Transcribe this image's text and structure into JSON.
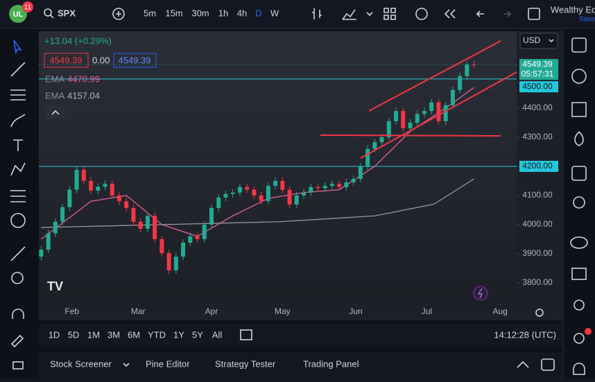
{
  "toolbar": {
    "logo_badge": "11",
    "symbol": "SPX",
    "intervals": [
      "5m",
      "15m",
      "30m",
      "1h",
      "4h",
      "D",
      "W"
    ],
    "account": "Wealthy Ed",
    "save": "Save"
  },
  "legend": {
    "change": "+13.04 (+0.29%)",
    "spread": "0.00"
  },
  "currency": "USD",
  "countdown": "05:57:31",
  "chart_data": {
    "type": "candlestick",
    "x": [
      19,
      22,
      25,
      28,
      31,
      34,
      37,
      40,
      43,
      46,
      49,
      52,
      55,
      58,
      61,
      64,
      67,
      70,
      73,
      76,
      79,
      82,
      85,
      88,
      91,
      94,
      97,
      100,
      103,
      106,
      109,
      112,
      115,
      118,
      121,
      124,
      127,
      130,
      133,
      136,
      139,
      142,
      145,
      148,
      151,
      154,
      157,
      160,
      163,
      166,
      169,
      172,
      175,
      178,
      181,
      184,
      187,
      190,
      193,
      196,
      199,
      202
    ],
    "open": [
      3890,
      3914,
      3970,
      4010,
      4060,
      4120,
      4188,
      4150,
      4117,
      4130,
      4140,
      4100,
      4080,
      4057,
      4010,
      3986,
      4030,
      3950,
      3902,
      3843,
      3890,
      3938,
      3960,
      3950,
      4000,
      4057,
      4093,
      4105,
      4110,
      4129,
      4120,
      4100,
      4081,
      4133,
      4150,
      4120,
      4069,
      4100,
      4110,
      4129,
      4125,
      4133,
      4140,
      4129,
      4145,
      4157,
      4200,
      4260,
      4283,
      4300,
      4355,
      4390,
      4331,
      4350,
      4380,
      4390,
      4420,
      4355,
      4410,
      4462,
      4510,
      4550
    ],
    "high": [
      3926,
      3982,
      4022,
      4072,
      4132,
      4200,
      4200,
      4162,
      4142,
      4152,
      4152,
      4112,
      4092,
      4069,
      4022,
      4042,
      4042,
      3962,
      3914,
      3902,
      3950,
      3972,
      3972,
      4012,
      4069,
      4105,
      4117,
      4122,
      4141,
      4141,
      4132,
      4112,
      4145,
      4162,
      4162,
      4132,
      4112,
      4122,
      4141,
      4141,
      4145,
      4152,
      4152,
      4157,
      4169,
      4212,
      4272,
      4295,
      4312,
      4367,
      4402,
      4402,
      4362,
      4392,
      4402,
      4432,
      4432,
      4422,
      4474,
      4522,
      4562,
      4562
    ],
    "low": [
      3878,
      3902,
      3958,
      3998,
      4048,
      4108,
      4138,
      4105,
      4105,
      4118,
      4088,
      4068,
      4045,
      3998,
      3974,
      3974,
      3938,
      3890,
      3831,
      3831,
      3878,
      3926,
      3938,
      3938,
      3988,
      4045,
      4081,
      4093,
      4098,
      4108,
      4088,
      4069,
      4069,
      4121,
      4108,
      4057,
      4057,
      4088,
      4098,
      4113,
      4113,
      4121,
      4117,
      4117,
      4133,
      4145,
      4188,
      4248,
      4271,
      4288,
      4343,
      4319,
      4319,
      4338,
      4368,
      4378,
      4343,
      4343,
      4398,
      4450,
      4498,
      4537
    ],
    "close": [
      3914,
      3970,
      4010,
      4060,
      4120,
      4188,
      4150,
      4117,
      4130,
      4140,
      4100,
      4080,
      4057,
      4010,
      3986,
      4030,
      3950,
      3902,
      3843,
      3890,
      3938,
      3960,
      3950,
      4000,
      4057,
      4093,
      4105,
      4110,
      4129,
      4120,
      4100,
      4081,
      4133,
      4150,
      4120,
      4069,
      4100,
      4110,
      4129,
      4125,
      4133,
      4140,
      4129,
      4145,
      4157,
      4200,
      4260,
      4283,
      4300,
      4355,
      4390,
      4331,
      4350,
      4380,
      4390,
      4420,
      4355,
      4410,
      4462,
      4510,
      4550,
      4549.39
    ],
    "up_color": "#22ab94",
    "down_color": "#f23645",
    "series": [
      {
        "name": "EMA",
        "color": "#e0609a",
        "x": [
          19,
          40,
          55,
          70,
          85,
          100,
          115,
          130,
          145,
          160,
          175,
          190,
          202
        ],
        "values": [
          3950,
          4080,
          4100,
          4000,
          3960,
          4030,
          4090,
          4110,
          4120,
          4200,
          4320,
          4400,
          4470.99
        ]
      },
      {
        "name": "EMA",
        "color": "#9598a1",
        "x": [
          19,
          70,
          120,
          160,
          185,
          202
        ],
        "values": [
          3990,
          4000,
          4010,
          4030,
          4070,
          4157.04
        ]
      }
    ],
    "hlines": [
      {
        "value": 4500,
        "label": "4500.00"
      },
      {
        "value": 4200,
        "label": "4200.00"
      }
    ],
    "hline_color": "#26c6da",
    "xlim": [
      18,
      220
    ],
    "xticks": [
      {
        "value": 32,
        "label": "Feb"
      },
      {
        "value": 60,
        "label": "Mar"
      },
      {
        "value": 91,
        "label": "Apr"
      },
      {
        "value": 121,
        "label": "May"
      },
      {
        "value": 152,
        "label": "Jun"
      },
      {
        "value": 182,
        "label": "Jul"
      },
      {
        "value": 213,
        "label": "Aug"
      }
    ],
    "ylim": [
      3731,
      4664
    ],
    "yticks": [
      {
        "value": 3800,
        "label": "3800.00"
      },
      {
        "value": 3900,
        "label": "3900.00"
      },
      {
        "value": 4000,
        "label": "4000.00"
      },
      {
        "value": 4100,
        "label": "4100.00"
      },
      {
        "value": 4200,
        "label": "4200.00"
      },
      {
        "value": 4300,
        "label": "4300.00"
      },
      {
        "value": 4400,
        "label": "4400.00"
      }
    ],
    "grid": false
  },
  "time_ranges": [
    "1D",
    "5D",
    "1M",
    "3M",
    "6M",
    "YTD",
    "1Y",
    "5Y",
    "All"
  ],
  "clock": "14:12:28 (UTC)",
  "bottom_tabs": [
    "Stock Screener",
    "Pine Editor",
    "Strategy Tester",
    "Trading Panel"
  ]
}
